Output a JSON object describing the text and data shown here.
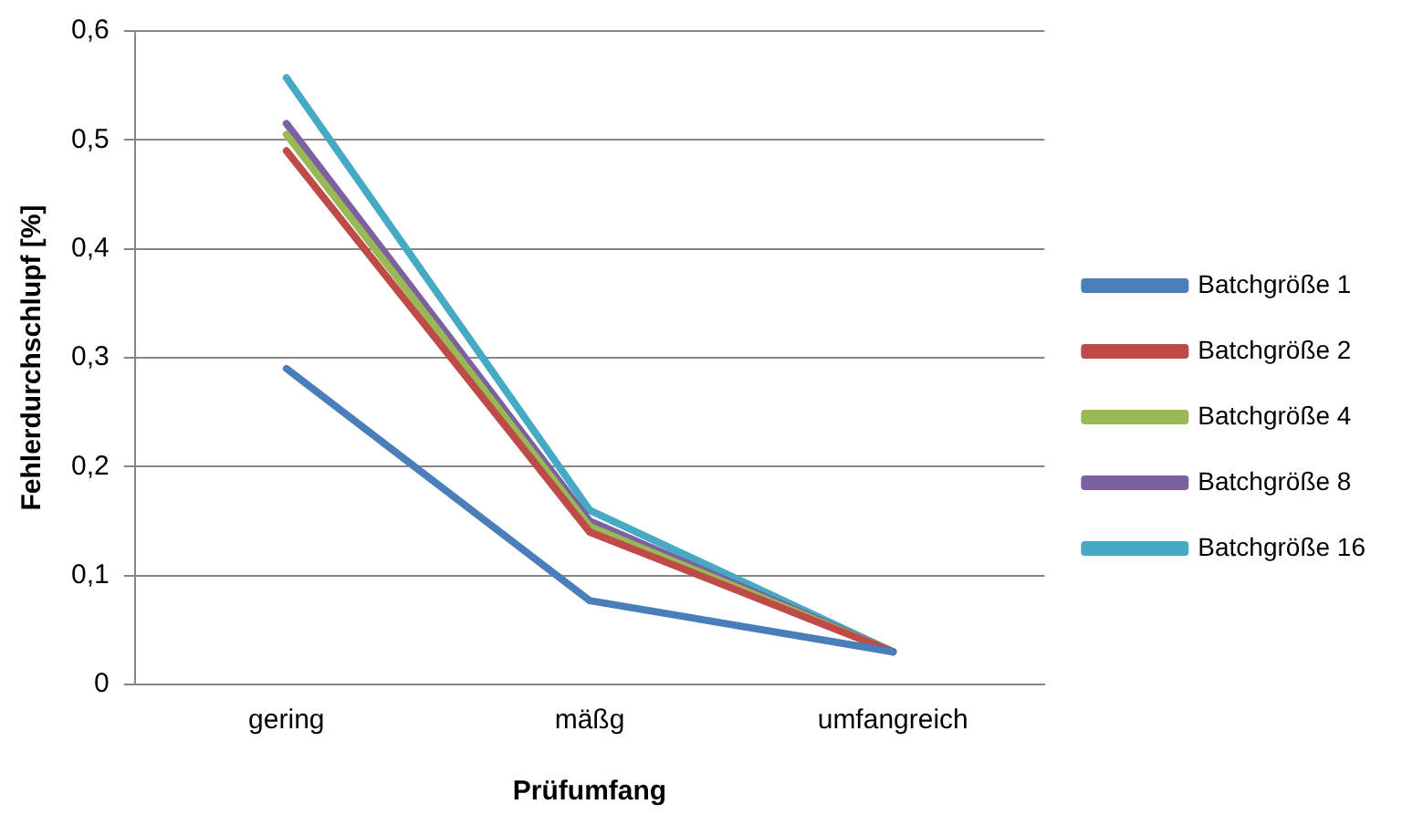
{
  "chart_data": {
    "type": "line",
    "xlabel": "Prüfumfang",
    "ylabel": "Fehlerdurchschlupf [%]",
    "categories": [
      "gering",
      "mäßg",
      "umfangreich"
    ],
    "series": [
      {
        "name": "Batchgröße 1",
        "color": "#4a7ebb",
        "values": [
          0.29,
          0.077,
          0.03
        ]
      },
      {
        "name": "Batchgröße 2",
        "color": "#be4b48",
        "values": [
          0.49,
          0.14,
          0.03
        ]
      },
      {
        "name": "Batchgröße 4",
        "color": "#98b954",
        "values": [
          0.505,
          0.145,
          0.03
        ]
      },
      {
        "name": "Batchgröße 8",
        "color": "#7d60a0",
        "values": [
          0.515,
          0.15,
          0.03
        ]
      },
      {
        "name": "Batchgröße 16",
        "color": "#46aac5",
        "values": [
          0.557,
          0.16,
          0.03
        ]
      }
    ],
    "ylim": [
      0,
      0.6
    ],
    "yticks": [
      0,
      {
        "value": 0.1,
        "label": "0,1"
      },
      {
        "value": 0.2,
        "label": "0,2"
      },
      {
        "value": 0.3,
        "label": "0,3"
      },
      {
        "value": 0.4,
        "label": "0,4"
      },
      {
        "value": 0.5,
        "label": "0,5"
      },
      {
        "value": 0.6,
        "label": "0,6"
      }
    ],
    "grid": "y",
    "legend": "right",
    "marker": "none",
    "line_style": "solid"
  }
}
